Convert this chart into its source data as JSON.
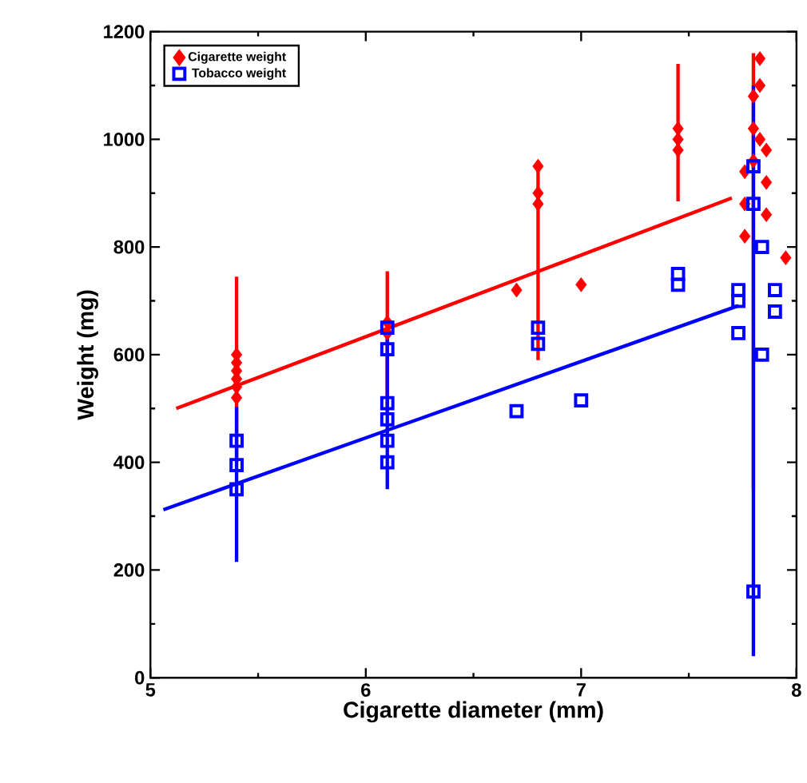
{
  "chart_data": {
    "type": "scatter",
    "xlabel": "Cigarette diameter (mm)",
    "ylabel": "Weight (mg)",
    "xlim": [
      5,
      8
    ],
    "ylim": [
      0,
      1200
    ],
    "xticks": [
      5,
      6,
      7,
      8
    ],
    "yticks": [
      0,
      200,
      400,
      600,
      800,
      1000,
      1200
    ],
    "grid": false,
    "legend": "top left",
    "series": [
      {
        "name": "Cigarette weight",
        "marker": "diamond",
        "color": "#ff0000",
        "x": [
          5.4,
          5.4,
          5.4,
          5.4,
          5.4,
          5.4,
          6.1,
          6.1,
          6.7,
          6.8,
          6.8,
          6.8,
          7.0,
          7.45,
          7.45,
          7.45,
          7.76,
          7.76,
          7.76,
          7.8,
          7.8,
          7.8,
          7.83,
          7.83,
          7.83,
          7.86,
          7.86,
          7.86,
          7.95
        ],
        "values": [
          520,
          540,
          555,
          570,
          585,
          600,
          640,
          660,
          720,
          880,
          900,
          950,
          730,
          980,
          1000,
          1020,
          820,
          880,
          940,
          960,
          1020,
          1080,
          1000,
          1100,
          1150,
          860,
          920,
          980,
          780
        ],
        "errors": [
          null,
          null,
          [
            400,
            745
          ],
          null,
          null,
          null,
          [
            490,
            755
          ],
          null,
          null,
          null,
          [
            590,
            960
          ],
          null,
          null,
          null,
          [
            885,
            1140
          ],
          null,
          null,
          null,
          null,
          null,
          [
            350,
            1160
          ],
          null,
          null,
          null,
          null,
          null,
          null,
          null,
          null
        ]
      },
      {
        "name": "Tobacco weight",
        "marker": "square",
        "color": "#0000ff",
        "x": [
          5.4,
          5.4,
          5.4,
          6.1,
          6.1,
          6.1,
          6.1,
          6.1,
          6.1,
          6.7,
          6.8,
          6.8,
          7.0,
          7.45,
          7.45,
          7.73,
          7.73,
          7.73,
          7.8,
          7.8,
          7.8,
          7.84,
          7.84,
          7.9,
          7.9
        ],
        "values": [
          350,
          395,
          440,
          400,
          440,
          480,
          510,
          610,
          650,
          495,
          620,
          650,
          515,
          730,
          750,
          640,
          700,
          720,
          880,
          950,
          160,
          600,
          800,
          680,
          720
        ],
        "errors": [
          null,
          [
            215,
            503
          ],
          null,
          null,
          null,
          [
            350,
            660
          ],
          null,
          null,
          null,
          null,
          null,
          null,
          null,
          null,
          null,
          null,
          null,
          null,
          [
            40,
            1100
          ],
          null,
          null,
          null,
          null,
          null,
          null
        ]
      },
      {
        "type": "line",
        "color": "#ff0000",
        "x": [
          5.12,
          7.7
        ],
        "values": [
          500,
          891
        ]
      },
      {
        "type": "line",
        "color": "#0000ff",
        "x": [
          5.06,
          7.73
        ],
        "values": [
          312,
          691
        ]
      }
    ]
  }
}
